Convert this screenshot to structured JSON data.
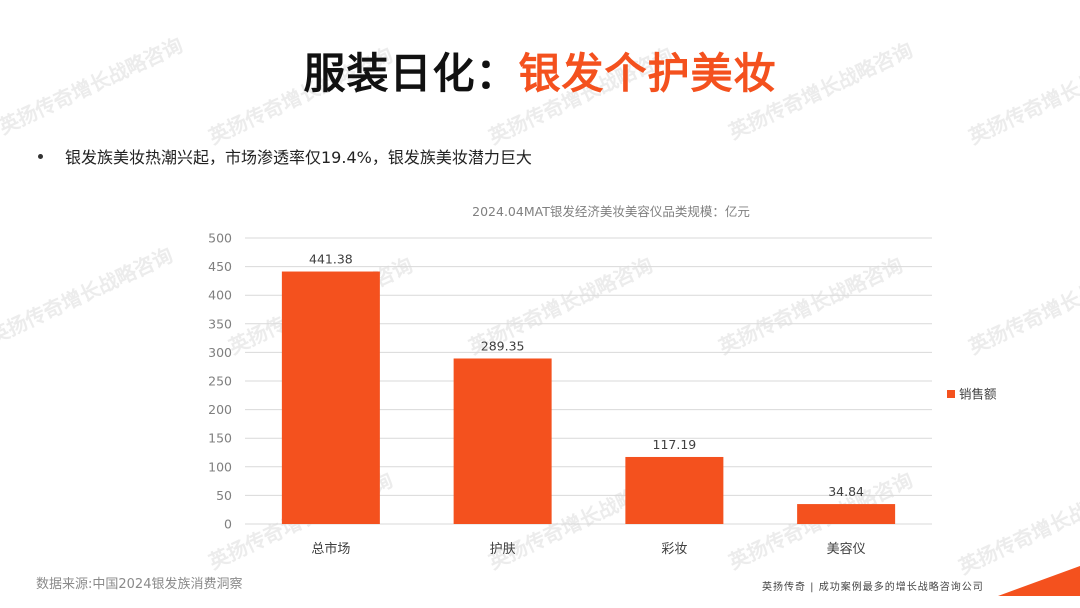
{
  "slide": {
    "title_black": "服装日化：",
    "title_orange": "银发个护美妆",
    "bullet": "银发族美妆热潮兴起，市场渗透率仅19.4%，银发族美妆潜力巨大",
    "source": "数据来源:中国2024银发族消费洞察",
    "footer_brand": "英扬传奇 | 成功案例最多的增长战略咨询公司",
    "watermark": "英扬传奇增长战略咨询"
  },
  "colors": {
    "accent": "#f4511e",
    "bar": "#f4511e",
    "title": "#111111"
  },
  "chart_data": {
    "type": "bar",
    "title": "2024.04MAT银发经济美妆美容仪品类规模：亿元",
    "categories": [
      "总市场",
      "护肤",
      "彩妆",
      "美容仪"
    ],
    "series": [
      {
        "name": "销售额",
        "values": [
          441.38,
          289.35,
          117.19,
          34.84
        ]
      }
    ],
    "data_labels": [
      "441.38",
      "289.35",
      "117.19",
      "34.84"
    ],
    "ylim": [
      0,
      500
    ],
    "yticks": [
      0,
      50,
      100,
      150,
      200,
      250,
      300,
      350,
      400,
      450,
      500
    ],
    "grid": true,
    "legend": "right"
  }
}
